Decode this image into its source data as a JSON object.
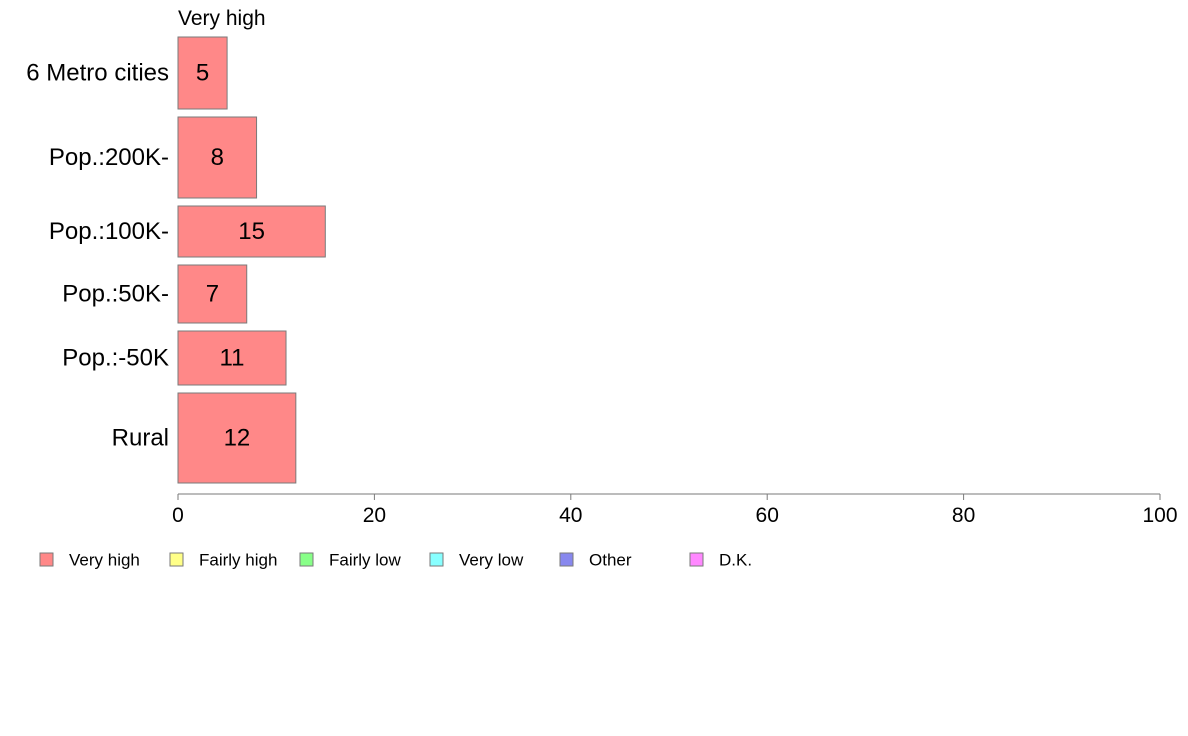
{
  "chart_data": {
    "type": "bar",
    "orientation": "horizontal",
    "top_label": "Very high",
    "categories": [
      "6 Metro cities",
      "Pop.:200K-",
      "Pop.:100K-",
      "Pop.:50K-",
      "Pop.:-50K",
      "Rural"
    ],
    "series": [
      {
        "name": "Very high",
        "color": "#ff8888",
        "values": [
          5,
          8,
          15,
          7,
          11,
          12
        ]
      }
    ],
    "xlim": [
      0,
      100
    ],
    "xticks": [
      "0",
      "20",
      "40",
      "60",
      "80",
      "100"
    ],
    "grid": false,
    "legend_position": "bottom-left",
    "legend": [
      {
        "label": "Very high",
        "color": "#ff8888"
      },
      {
        "label": "Fairly high",
        "color": "#ffff88"
      },
      {
        "label": "Fairly low",
        "color": "#88ff88"
      },
      {
        "label": "Very low",
        "color": "#88ffff"
      },
      {
        "label": "Other",
        "color": "#8888ee"
      },
      {
        "label": "D.K.",
        "color": "#ff88ff"
      }
    ]
  }
}
